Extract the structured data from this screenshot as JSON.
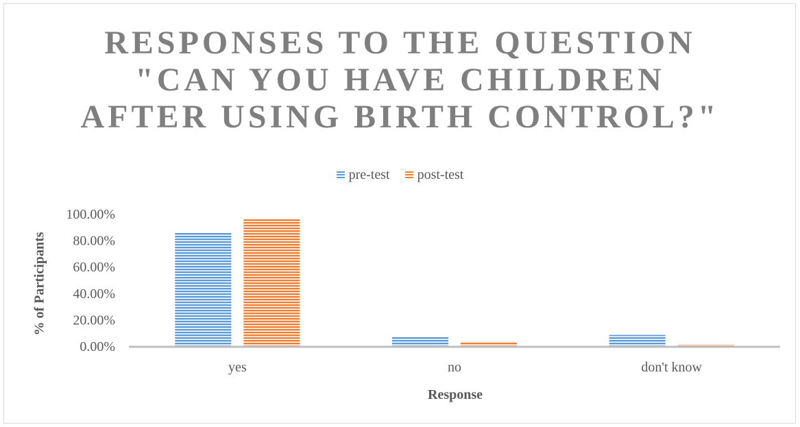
{
  "chart_data": {
    "type": "bar",
    "title_lines": [
      "RESPONSES TO THE QUESTION",
      "\"CAN YOU HAVE CHILDREN",
      "AFTER USING BIRTH CONTROL?\""
    ],
    "categories": [
      "yes",
      "no",
      "don't know"
    ],
    "series": [
      {
        "name": "pre-test",
        "values": [
          86.0,
          7.0,
          8.5
        ],
        "color": "#5b9bd5"
      },
      {
        "name": "post-test",
        "values": [
          96.5,
          3.5,
          1.5
        ],
        "color": "#ed7d31"
      }
    ],
    "xlabel": "Response",
    "ylabel": "% of Participants",
    "ylim": [
      0,
      100
    ],
    "yticks": [
      "0.00%",
      "20.00%",
      "40.00%",
      "60.00%",
      "80.00%",
      "100.00%"
    ],
    "legend_position": "top",
    "bar_pattern": "horizontal-stripes",
    "grid": false
  }
}
